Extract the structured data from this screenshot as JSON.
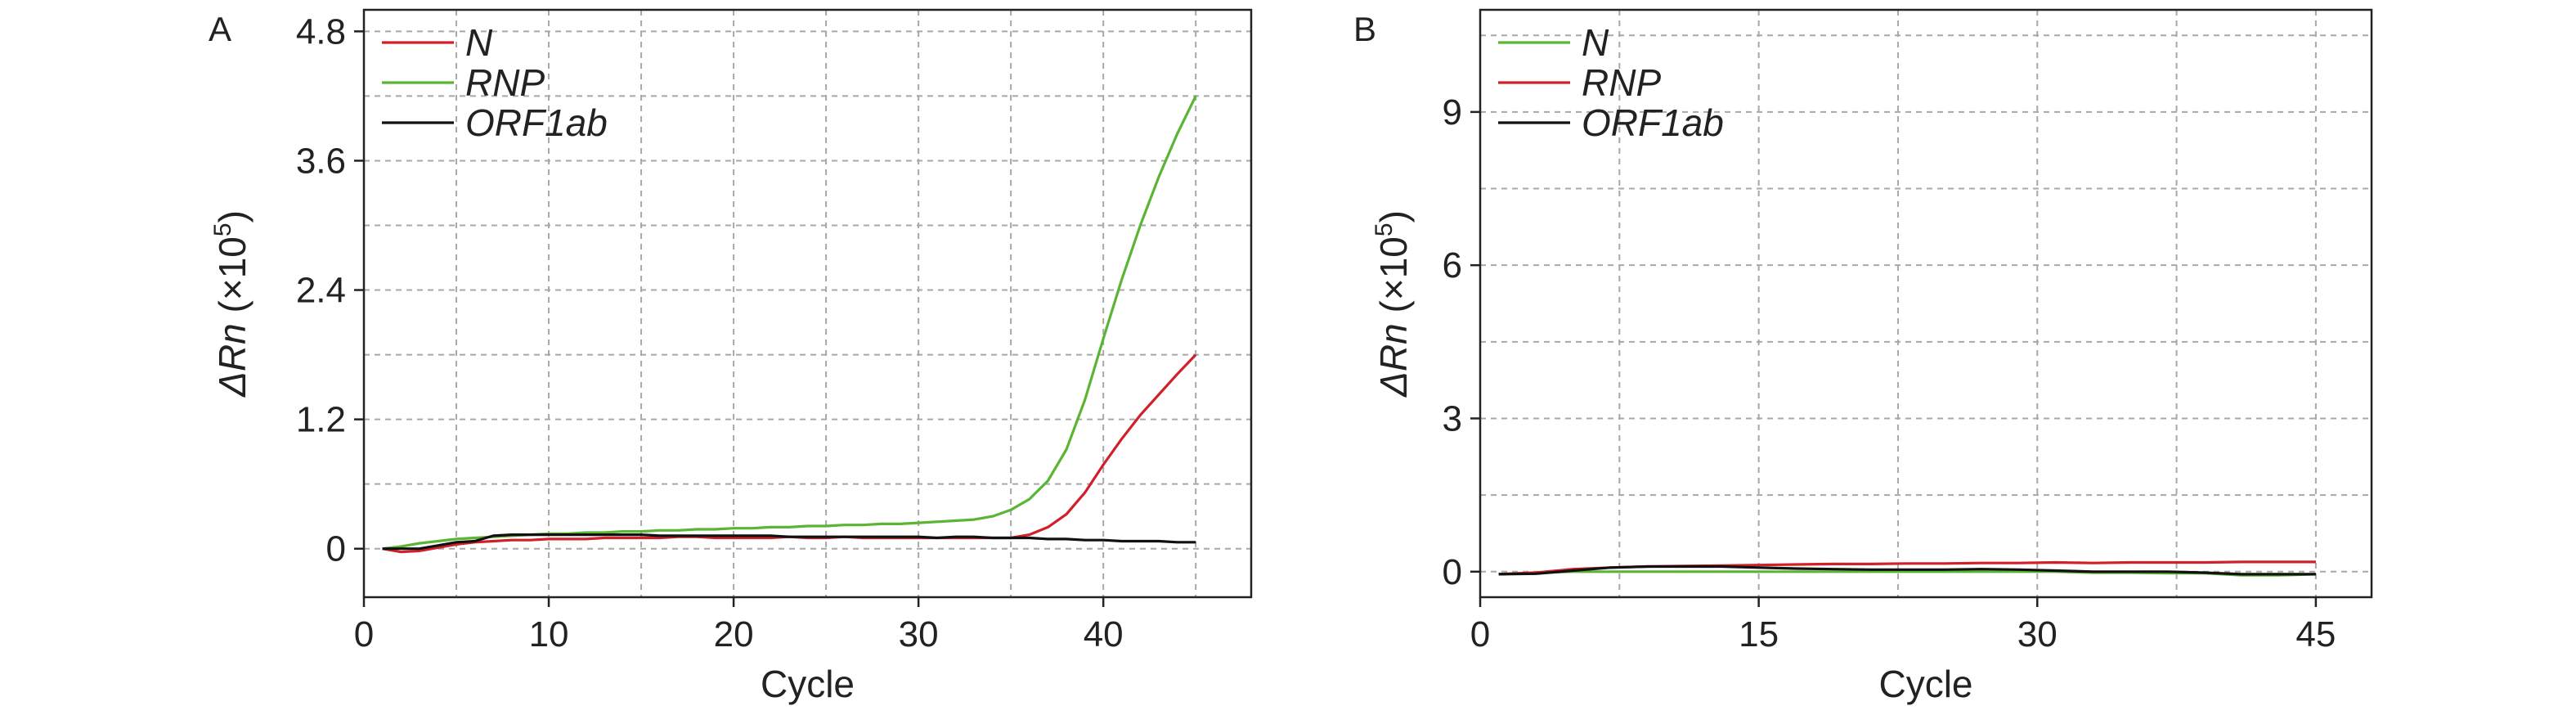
{
  "chart_data": [
    {
      "panel": "A",
      "type": "line",
      "xlabel": "Cycle",
      "ylabel": {
        "delta": "ΔRn",
        "rest": "(×10",
        "exp": "5",
        "close": ")"
      },
      "xlim": [
        0,
        48
      ],
      "ylim": [
        -0.45,
        5.0
      ],
      "xticks": [
        0,
        10,
        20,
        30,
        40
      ],
      "xtick_labels": [
        "0",
        "10",
        "20",
        "30",
        "40"
      ],
      "yticks": [
        0,
        1.2,
        2.4,
        3.6,
        4.8
      ],
      "ytick_labels": [
        "0",
        "1.2",
        "2.4",
        "3.6",
        "4.8"
      ],
      "ygrid": [
        0,
        0.6,
        1.2,
        1.8,
        2.4,
        3.0,
        3.6,
        4.2,
        4.8
      ],
      "xgrid": [
        5,
        10,
        15,
        20,
        25,
        30,
        35,
        40,
        45
      ],
      "grid": true,
      "legend_position": "top-left",
      "series": [
        {
          "name": "N",
          "color": "#d0202a",
          "x": [
            1,
            2,
            3,
            4,
            5,
            6,
            7,
            8,
            9,
            10,
            11,
            12,
            13,
            14,
            15,
            16,
            17,
            18,
            19,
            20,
            21,
            22,
            23,
            24,
            25,
            26,
            27,
            28,
            29,
            30,
            31,
            32,
            33,
            34,
            35,
            36,
            37,
            38,
            39,
            40,
            41,
            42,
            43,
            44,
            45
          ],
          "y": [
            0,
            -0.03,
            -0.02,
            0.01,
            0.04,
            0.06,
            0.07,
            0.08,
            0.08,
            0.09,
            0.09,
            0.09,
            0.1,
            0.1,
            0.1,
            0.1,
            0.11,
            0.11,
            0.1,
            0.1,
            0.1,
            0.1,
            0.11,
            0.1,
            0.1,
            0.11,
            0.1,
            0.1,
            0.1,
            0.1,
            0.1,
            0.1,
            0.1,
            0.1,
            0.1,
            0.13,
            0.2,
            0.32,
            0.52,
            0.78,
            1.02,
            1.24,
            1.43,
            1.62,
            1.8
          ]
        },
        {
          "name": "RNP",
          "color": "#5bb535",
          "x": [
            1,
            2,
            3,
            4,
            5,
            6,
            7,
            8,
            9,
            10,
            11,
            12,
            13,
            14,
            15,
            16,
            17,
            18,
            19,
            20,
            21,
            22,
            23,
            24,
            25,
            26,
            27,
            28,
            29,
            30,
            31,
            32,
            33,
            34,
            35,
            36,
            37,
            38,
            39,
            40,
            41,
            42,
            43,
            44,
            45
          ],
          "y": [
            0,
            0.02,
            0.05,
            0.07,
            0.09,
            0.1,
            0.11,
            0.12,
            0.13,
            0.14,
            0.14,
            0.15,
            0.15,
            0.16,
            0.16,
            0.17,
            0.17,
            0.18,
            0.18,
            0.19,
            0.19,
            0.2,
            0.2,
            0.21,
            0.21,
            0.22,
            0.22,
            0.23,
            0.23,
            0.24,
            0.25,
            0.26,
            0.27,
            0.3,
            0.36,
            0.46,
            0.63,
            0.92,
            1.38,
            1.95,
            2.5,
            3.0,
            3.45,
            3.85,
            4.2
          ]
        },
        {
          "name": "ORF1ab",
          "color": "#111111",
          "x": [
            1,
            2,
            3,
            4,
            5,
            6,
            7,
            8,
            9,
            10,
            11,
            12,
            13,
            14,
            15,
            16,
            17,
            18,
            19,
            20,
            21,
            22,
            23,
            24,
            25,
            26,
            27,
            28,
            29,
            30,
            31,
            32,
            33,
            34,
            35,
            36,
            37,
            38,
            39,
            40,
            41,
            42,
            43,
            44,
            45
          ],
          "y": [
            0,
            0,
            0,
            0.03,
            0.06,
            0.07,
            0.12,
            0.13,
            0.13,
            0.13,
            0.13,
            0.13,
            0.13,
            0.13,
            0.13,
            0.12,
            0.12,
            0.12,
            0.12,
            0.12,
            0.12,
            0.12,
            0.11,
            0.11,
            0.11,
            0.11,
            0.11,
            0.11,
            0.11,
            0.11,
            0.1,
            0.11,
            0.11,
            0.1,
            0.1,
            0.1,
            0.09,
            0.09,
            0.08,
            0.08,
            0.07,
            0.07,
            0.07,
            0.06,
            0.06
          ]
        }
      ]
    },
    {
      "panel": "B",
      "type": "line",
      "xlabel": "Cycle",
      "ylabel": {
        "delta": "ΔRn",
        "rest": "(×10",
        "exp": "5",
        "close": ")"
      },
      "xlim": [
        0,
        48
      ],
      "ylim": [
        -0.5,
        11
      ],
      "xticks": [
        0,
        15,
        30,
        45
      ],
      "xtick_labels": [
        "0",
        "15",
        "30",
        "45"
      ],
      "yticks": [
        0,
        3,
        6,
        9
      ],
      "ytick_labels": [
        "0",
        "3",
        "6",
        "9"
      ],
      "ygrid": [
        0,
        1.5,
        3,
        4.5,
        6,
        7.5,
        9,
        10.5
      ],
      "xgrid": [
        7.5,
        15,
        22.5,
        30,
        37.5,
        45
      ],
      "grid": true,
      "legend_position": "top-left",
      "series": [
        {
          "name": "N",
          "color": "#5bb535",
          "x": [
            1,
            3,
            5,
            7,
            9,
            11,
            13,
            15,
            17,
            19,
            21,
            23,
            25,
            27,
            29,
            31,
            33,
            35,
            37,
            39,
            41,
            43,
            45
          ],
          "y": [
            -0.05,
            -0.02,
            0.0,
            0.0,
            0.0,
            0.0,
            0.0,
            0.0,
            0.0,
            0.0,
            0.0,
            0.0,
            0.0,
            0.0,
            0.0,
            0.0,
            -0.02,
            -0.02,
            -0.03,
            -0.03,
            -0.07,
            -0.07,
            -0.05
          ]
        },
        {
          "name": "RNP",
          "color": "#d0202a",
          "x": [
            1,
            3,
            5,
            7,
            9,
            11,
            13,
            15,
            17,
            19,
            21,
            23,
            25,
            27,
            29,
            31,
            33,
            35,
            37,
            39,
            41,
            43,
            45
          ],
          "y": [
            -0.05,
            -0.02,
            0.05,
            0.08,
            0.1,
            0.11,
            0.12,
            0.13,
            0.14,
            0.15,
            0.15,
            0.16,
            0.16,
            0.17,
            0.17,
            0.18,
            0.17,
            0.18,
            0.18,
            0.18,
            0.19,
            0.19,
            0.19
          ]
        },
        {
          "name": "ORF1ab",
          "color": "#111111",
          "x": [
            1,
            3,
            5,
            7,
            9,
            11,
            13,
            15,
            17,
            19,
            21,
            23,
            25,
            27,
            29,
            31,
            33,
            35,
            37,
            39,
            41,
            43,
            45
          ],
          "y": [
            -0.05,
            -0.04,
            0.02,
            0.08,
            0.1,
            0.1,
            0.1,
            0.08,
            0.06,
            0.05,
            0.04,
            0.04,
            0.04,
            0.05,
            0.04,
            0.02,
            0.0,
            0.0,
            0.0,
            -0.02,
            -0.05,
            -0.05,
            -0.05
          ]
        }
      ]
    }
  ]
}
